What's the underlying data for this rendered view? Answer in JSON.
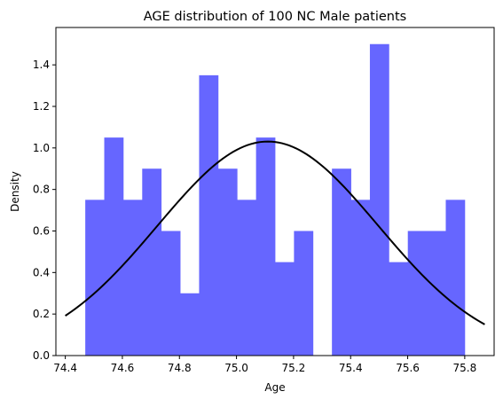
{
  "chart_data": {
    "type": "bar",
    "title": "AGE distribution of 100 NC Male patients",
    "xlabel": "Age",
    "ylabel": "Density",
    "xlim": [
      74.367,
      75.903
    ],
    "ylim": [
      0,
      1.58
    ],
    "xticks": [
      "74.4",
      "74.6",
      "74.8",
      "75.0",
      "75.2",
      "75.4",
      "75.6",
      "75.8"
    ],
    "yticks": [
      "0.0",
      "0.2",
      "0.4",
      "0.6",
      "0.8",
      "1.0",
      "1.2",
      "1.4"
    ],
    "grid": false,
    "legend": "none",
    "histogram": {
      "bin_start": 74.47,
      "bin_width": 0.0665,
      "densities": [
        0.75,
        1.05,
        0.75,
        0.9,
        0.6,
        0.3,
        1.35,
        0.9,
        0.75,
        1.05,
        0.45,
        0.6,
        0.0,
        0.9,
        0.75,
        1.5,
        0.45,
        0.6,
        0.6,
        0.75
      ],
      "color": "#6666ff"
    },
    "curve": {
      "type": "normal_pdf",
      "mean": 75.11,
      "std": 0.387,
      "x_range": [
        74.4,
        75.87
      ],
      "color": "#000000"
    }
  }
}
